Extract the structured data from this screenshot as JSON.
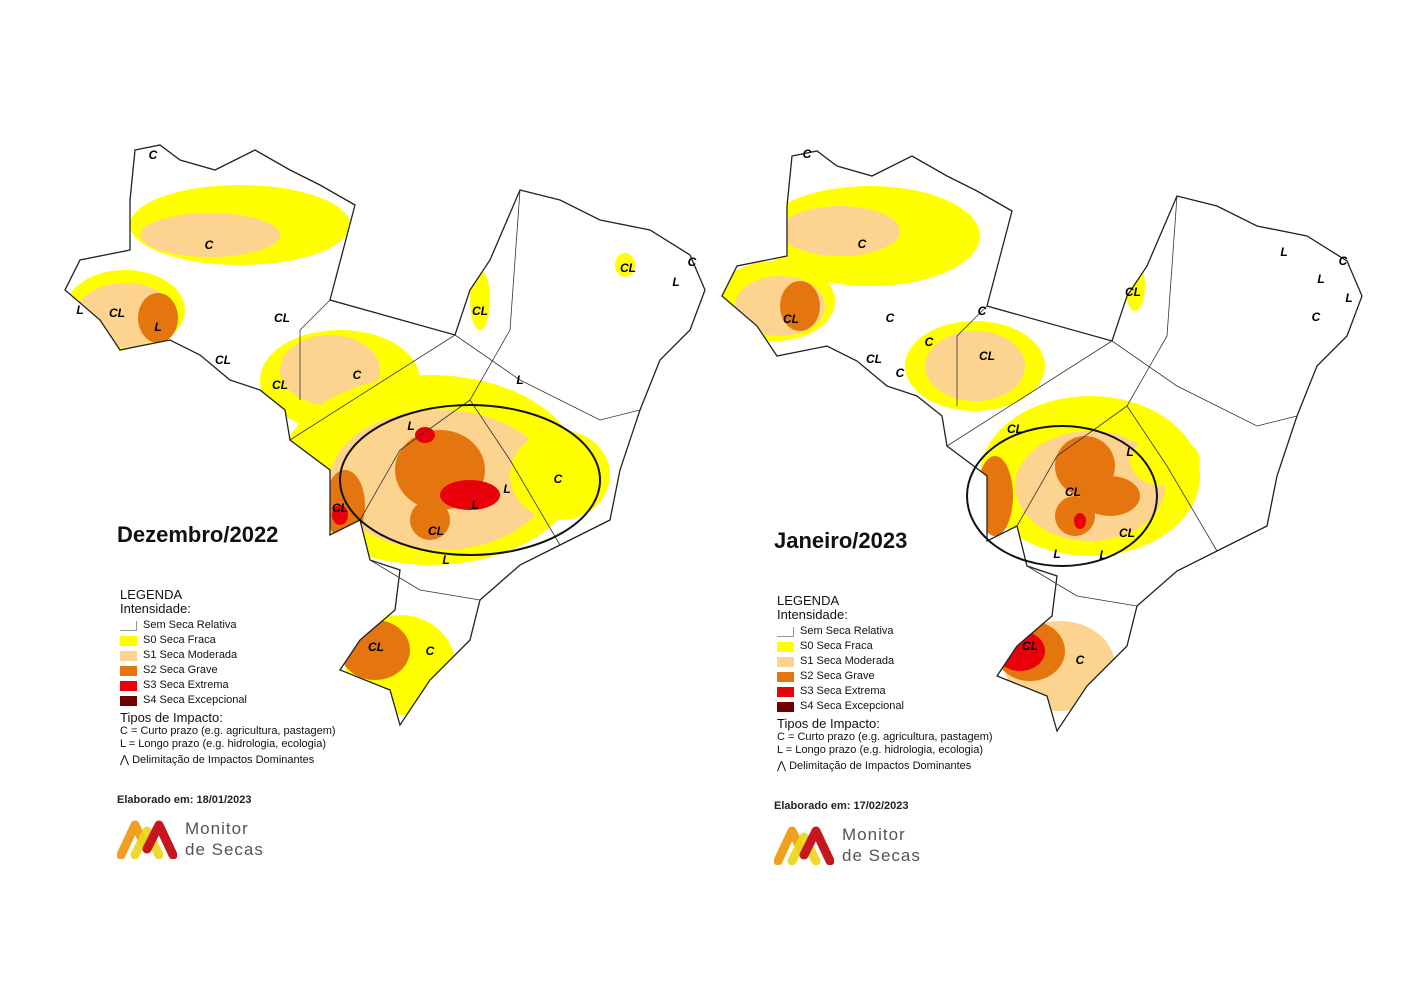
{
  "colors": {
    "none": "#ffffff",
    "s0": "#ffff00",
    "s1": "#fcd38f",
    "s2": "#e5750f",
    "s3": "#e8000b",
    "s4": "#730000",
    "border": "#111111"
  },
  "maps": [
    {
      "title": "Dezembro/2022",
      "elaborado": "Elaborado em: 18/01/2023",
      "labels": [
        "C",
        "C",
        "CL",
        "L",
        "L",
        "CL",
        "CL",
        "CL",
        "CL",
        "C",
        "L",
        "L",
        "CL",
        "L",
        "C",
        "L",
        "CL",
        "CL",
        "L",
        "CL",
        "C",
        "C",
        "L"
      ]
    },
    {
      "title": "Janeiro/2023",
      "elaborado": "Elaborado em: 17/02/2023",
      "labels": [
        "C",
        "C",
        "L",
        "CL",
        "C",
        "CL",
        "C",
        "CL",
        "C",
        "CL",
        "CL",
        "C",
        "L",
        "L",
        "CL",
        "L",
        "CL",
        "C",
        "CL",
        "C",
        "L",
        "L",
        "C"
      ]
    }
  ],
  "legend": {
    "heading": "LEGENDA",
    "intensity_heading": "Intensidade:",
    "items": [
      {
        "label": "Sem Seca Relativa",
        "key": "none"
      },
      {
        "label": "S0 Seca Fraca",
        "key": "s0"
      },
      {
        "label": "S1 Seca Moderada",
        "key": "s1"
      },
      {
        "label": "S2 Seca Grave",
        "key": "s2"
      },
      {
        "label": "S3 Seca Extrema",
        "key": "s3"
      },
      {
        "label": "S4 Seca Excepcional",
        "key": "s4"
      }
    ],
    "impact_heading": "Tipos de Impacto:",
    "impact_c": "C = Curto prazo (e.g. agricultura, pastagem)",
    "impact_l": "L = Longo prazo (e.g. hidrologia, ecologia)",
    "delimitation": "Delimitação de Impactos Dominantes"
  },
  "logo": {
    "line1": "Monitor",
    "line2": "de Secas"
  }
}
